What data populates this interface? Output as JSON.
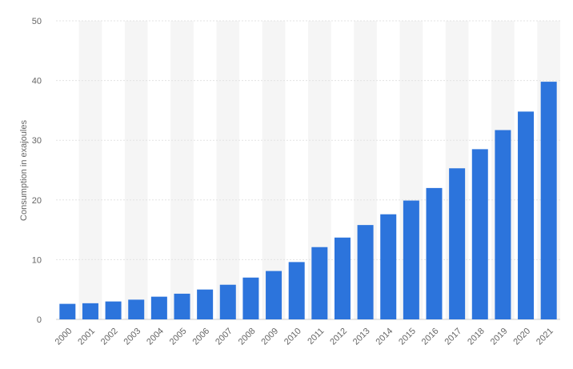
{
  "chart_data": {
    "type": "bar",
    "title": "",
    "xlabel": "",
    "ylabel": "Consumption in exajoules",
    "categories": [
      "2000",
      "2001",
      "2002",
      "2003",
      "2004",
      "2005",
      "2006",
      "2007",
      "2008",
      "2009",
      "2010",
      "2011",
      "2012",
      "2013",
      "2014",
      "2015",
      "2016",
      "2017",
      "2018",
      "2019",
      "2020",
      "2021"
    ],
    "values": [
      2.6,
      2.7,
      3.0,
      3.3,
      3.8,
      4.3,
      5.0,
      5.8,
      7.0,
      8.1,
      9.6,
      12.1,
      13.7,
      15.8,
      17.6,
      19.9,
      22.0,
      25.3,
      28.5,
      31.7,
      34.8,
      39.8
    ],
    "ylim": [
      0,
      50
    ],
    "yticks": [
      0,
      10,
      20,
      30,
      40,
      50
    ],
    "grid": true,
    "bar_color": "#2c74dc",
    "band_color": "#f5f5f5"
  }
}
